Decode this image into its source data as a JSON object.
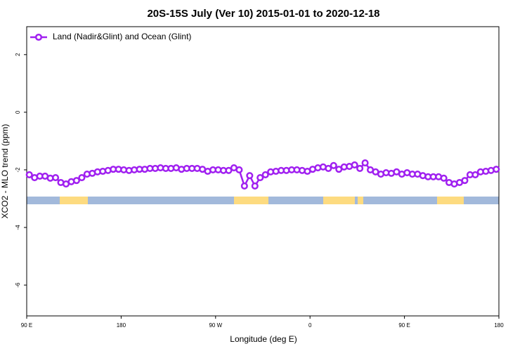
{
  "chart_data": {
    "type": "line",
    "title": "20S-15S July (Ver 10)   2015-01-01 to 2020-12-18",
    "x_label": "Longitude (deg E)",
    "y_label": "XCO2 - MLO trend (ppm)",
    "xlim": [
      90,
      540
    ],
    "xticks": [
      {
        "value": 90,
        "label": "90 E"
      },
      180,
      {
        "value": 270,
        "label": "90 W"
      },
      {
        "value": 360,
        "label": "0"
      },
      {
        "value": 450,
        "label": "90 E"
      },
      {
        "value": 540,
        "label": "180"
      }
    ],
    "ylim": [
      -7.07,
      2.97
    ],
    "yticks": [
      2,
      0,
      -2,
      -4,
      -6
    ],
    "legend": "top-left",
    "series": [
      {
        "name": "Land (Nadir&Glint) and Ocean (Glint)",
        "color": "#a020f0",
        "x": [
          92.5,
          97.5,
          102.5,
          107.5,
          112.5,
          117.5,
          122.5,
          127.5,
          132.5,
          137.5,
          142.5,
          147.5,
          152.5,
          157.5,
          162.5,
          167.5,
          172.5,
          177.5,
          182.5,
          187.5,
          192.5,
          197.5,
          202.5,
          207.5,
          212.5,
          217.5,
          222.5,
          227.5,
          232.5,
          237.5,
          242.5,
          247.5,
          252.5,
          257.5,
          262.5,
          267.5,
          272.5,
          277.5,
          282.5,
          287.5,
          292.5,
          297.5,
          302.5,
          307.5,
          312.5,
          317.5,
          322.5,
          327.5,
          332.5,
          337.5,
          342.5,
          347.5,
          352.5,
          357.5,
          362.5,
          367.5,
          372.5,
          377.5,
          382.5,
          387.5,
          392.5,
          397.5,
          402.5,
          407.5,
          412.5,
          417.5,
          422.5,
          427.5,
          432.5,
          437.5,
          442.5,
          447.5,
          452.5,
          457.5,
          462.5,
          467.5,
          472.5,
          477.5,
          482.5,
          487.5,
          492.5,
          497.5,
          502.5,
          507.5,
          512.5,
          517.5,
          522.5,
          527.5,
          532.5,
          537.5
        ],
        "values": [
          -2.17,
          -2.27,
          -2.22,
          -2.22,
          -2.29,
          -2.27,
          -2.44,
          -2.49,
          -2.41,
          -2.37,
          -2.27,
          -2.15,
          -2.12,
          -2.07,
          -2.05,
          -2.02,
          -1.98,
          -1.98,
          -2.0,
          -2.02,
          -2.0,
          -1.98,
          -1.98,
          -1.95,
          -1.95,
          -1.93,
          -1.95,
          -1.95,
          -1.93,
          -1.98,
          -1.95,
          -1.95,
          -1.95,
          -1.98,
          -2.05,
          -2.0,
          -2.0,
          -2.02,
          -2.02,
          -1.93,
          -2.0,
          -2.56,
          -2.2,
          -2.56,
          -2.27,
          -2.17,
          -2.07,
          -2.05,
          -2.02,
          -2.02,
          -2.0,
          -2.0,
          -2.02,
          -2.05,
          -1.98,
          -1.93,
          -1.9,
          -1.95,
          -1.85,
          -1.98,
          -1.9,
          -1.88,
          -1.83,
          -1.95,
          -1.76,
          -2.0,
          -2.07,
          -2.15,
          -2.1,
          -2.12,
          -2.07,
          -2.15,
          -2.1,
          -2.15,
          -2.15,
          -2.2,
          -2.24,
          -2.24,
          -2.24,
          -2.29,
          -2.44,
          -2.49,
          -2.44,
          -2.37,
          -2.17,
          -2.17,
          -2.07,
          -2.05,
          -2.02,
          -1.98
        ]
      }
    ]
  }
}
